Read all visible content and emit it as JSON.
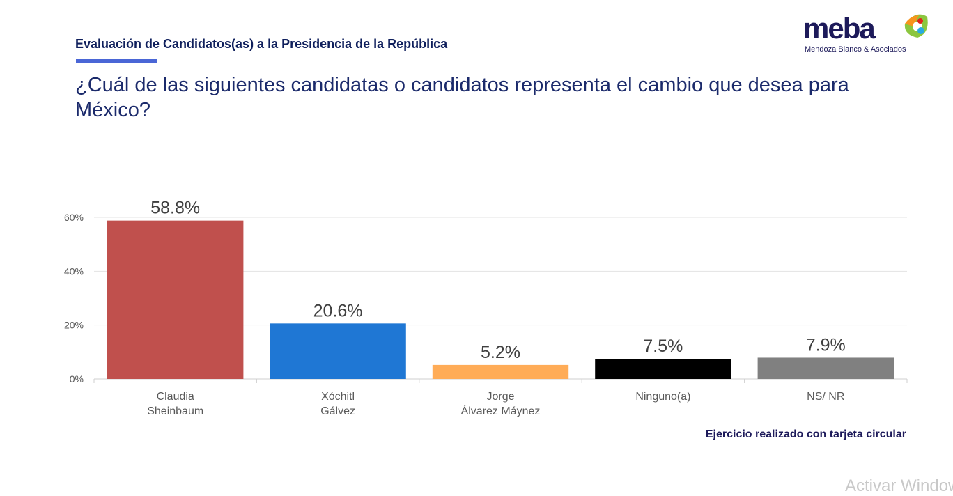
{
  "header": {
    "section_title": "Evaluación de Candidatos(as) a la Presidencia de la República",
    "question": "¿Cuál de las siguientes candidatas o candidatos representa el cambio que desea para México?"
  },
  "logo": {
    "word": "meba",
    "subtitle": "Mendoza Blanco & Asociados"
  },
  "footer": {
    "note": "Ejercicio realizado con tarjeta circular",
    "watermark": "Activar Windows"
  },
  "chart_data": {
    "type": "bar",
    "categories": [
      [
        "Claudia",
        "Sheinbaum"
      ],
      [
        "Xóchitl",
        "Gálvez"
      ],
      [
        "Jorge",
        "Álvarez Máynez"
      ],
      [
        "Ninguno(a)"
      ],
      [
        "NS/ NR"
      ]
    ],
    "values": [
      58.8,
      20.6,
      5.2,
      7.5,
      7.9
    ],
    "data_labels": [
      "58.8%",
      "20.6%",
      "5.2%",
      "7.5%",
      "7.9%"
    ],
    "colors": [
      "#c0504d",
      "#1f77d4",
      "#ffac57",
      "#000000",
      "#808080"
    ],
    "ylim": [
      0,
      60
    ],
    "yticks": [
      0,
      20,
      40,
      60
    ],
    "ytick_labels": [
      "0%",
      "20%",
      "40%",
      "60%"
    ],
    "grid": true
  }
}
